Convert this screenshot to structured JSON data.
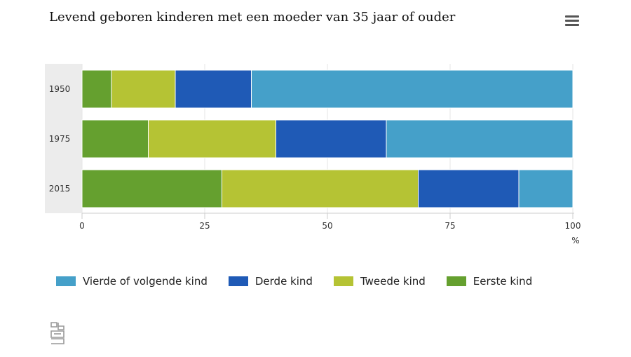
{
  "chart_data": {
    "type": "bar",
    "orientation": "horizontal",
    "stacked": true,
    "title": "Levend geboren kinderen met een moeder van 35 jaar of ouder",
    "categories": [
      "1950",
      "1975",
      "2015"
    ],
    "series": [
      {
        "name": "Eerste kind",
        "color": "#65a02f",
        "values": [
          6,
          13.5,
          28.5
        ]
      },
      {
        "name": "Tweede kind",
        "color": "#b5c334",
        "values": [
          13,
          26,
          40
        ]
      },
      {
        "name": "Derde kind",
        "color": "#1f5ab6",
        "values": [
          15.5,
          22.5,
          20.5
        ]
      },
      {
        "name": "Vierde of volgende kind",
        "color": "#45a0c9",
        "values": [
          65.5,
          38,
          11
        ]
      }
    ],
    "xlim": [
      0,
      100
    ],
    "xticks": [
      "0",
      "25",
      "50",
      "75",
      "100"
    ],
    "xlabel": "%",
    "legend_order": [
      "Vierde of volgende kind",
      "Derde kind",
      "Tweede kind",
      "Eerste kind"
    ],
    "legend_position": "bottom-left"
  },
  "menu_icon": "hamburger-menu-icon",
  "logo_icon": "cbs-logo-icon"
}
